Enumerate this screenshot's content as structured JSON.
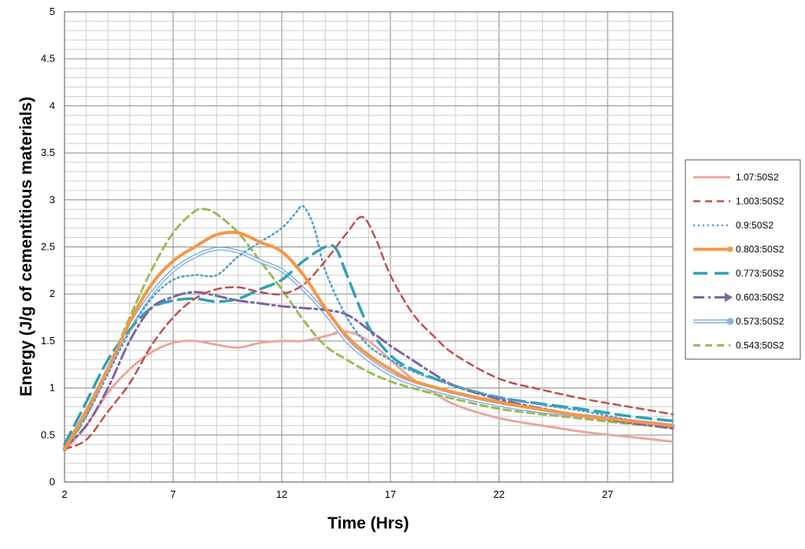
{
  "chart_data": {
    "type": "line",
    "title": "",
    "xlabel": "Time (Hrs)",
    "ylabel": "Energy (J/g of cementitious materials)",
    "xlim": [
      2,
      30
    ],
    "ylim": [
      0,
      5
    ],
    "x_ticks": [
      2,
      7,
      12,
      17,
      22,
      27
    ],
    "y_ticks": [
      0,
      0.5,
      1,
      1.5,
      2,
      2.5,
      3,
      3.5,
      4,
      4.5,
      5
    ],
    "y_tick_labels": [
      "0",
      "0.5",
      "1",
      "1.5",
      "2",
      "2.5",
      "3",
      "3.5",
      "4",
      "4.5",
      "5"
    ],
    "grid": true,
    "legend_position": "right",
    "series": [
      {
        "name": "1.07:50S2",
        "color": "#e8a7a2",
        "style": "solid",
        "width": 3,
        "points": [
          [
            2,
            0.33
          ],
          [
            3,
            0.6
          ],
          [
            4,
            0.95
          ],
          [
            5,
            1.2
          ],
          [
            6,
            1.38
          ],
          [
            7,
            1.48
          ],
          [
            8,
            1.5
          ],
          [
            9,
            1.46
          ],
          [
            10,
            1.43
          ],
          [
            11,
            1.48
          ],
          [
            12,
            1.5
          ],
          [
            13,
            1.5
          ],
          [
            14,
            1.55
          ],
          [
            15,
            1.6
          ],
          [
            16,
            1.5
          ],
          [
            17,
            1.3
          ],
          [
            18,
            1.1
          ],
          [
            19,
            0.95
          ],
          [
            20,
            0.82
          ],
          [
            22,
            0.68
          ],
          [
            24,
            0.6
          ],
          [
            26,
            0.53
          ],
          [
            28,
            0.48
          ],
          [
            30,
            0.43
          ]
        ]
      },
      {
        "name": "1.003:50S2",
        "color": "#c0504d",
        "style": "dashed",
        "width": 2.5,
        "points": [
          [
            2,
            0.35
          ],
          [
            3,
            0.45
          ],
          [
            4,
            0.75
          ],
          [
            5,
            1.05
          ],
          [
            6,
            1.45
          ],
          [
            7,
            1.75
          ],
          [
            8,
            1.95
          ],
          [
            9,
            2.05
          ],
          [
            10,
            2.07
          ],
          [
            11,
            2.02
          ],
          [
            12,
            2.0
          ],
          [
            13,
            2.1
          ],
          [
            14,
            2.35
          ],
          [
            15,
            2.65
          ],
          [
            15.7,
            2.82
          ],
          [
            16.3,
            2.6
          ],
          [
            17,
            2.2
          ],
          [
            18,
            1.8
          ],
          [
            19,
            1.55
          ],
          [
            20,
            1.35
          ],
          [
            22,
            1.1
          ],
          [
            24,
            0.98
          ],
          [
            26,
            0.88
          ],
          [
            28,
            0.8
          ],
          [
            30,
            0.72
          ]
        ]
      },
      {
        "name": "0.9:50S2",
        "color": "#4f9fca",
        "style": "dotted",
        "width": 2.5,
        "points": [
          [
            2,
            0.35
          ],
          [
            3,
            0.7
          ],
          [
            4,
            1.15
          ],
          [
            5,
            1.6
          ],
          [
            6,
            1.95
          ],
          [
            7,
            2.15
          ],
          [
            8,
            2.2
          ],
          [
            9,
            2.2
          ],
          [
            10,
            2.4
          ],
          [
            11,
            2.55
          ],
          [
            12,
            2.7
          ],
          [
            12.6,
            2.85
          ],
          [
            13,
            2.93
          ],
          [
            13.5,
            2.7
          ],
          [
            14,
            2.25
          ],
          [
            15,
            1.75
          ],
          [
            16,
            1.45
          ],
          [
            17,
            1.3
          ],
          [
            18,
            1.18
          ],
          [
            20,
            1.02
          ],
          [
            22,
            0.9
          ],
          [
            24,
            0.82
          ],
          [
            26,
            0.75
          ],
          [
            28,
            0.66
          ],
          [
            30,
            0.6
          ]
        ]
      },
      {
        "name": "0.803:50S2",
        "color": "#f79646",
        "style": "solid",
        "width": 4,
        "points": [
          [
            2,
            0.35
          ],
          [
            3,
            0.75
          ],
          [
            4,
            1.2
          ],
          [
            5,
            1.7
          ],
          [
            6,
            2.1
          ],
          [
            7,
            2.35
          ],
          [
            8,
            2.5
          ],
          [
            9,
            2.63
          ],
          [
            10,
            2.65
          ],
          [
            11,
            2.55
          ],
          [
            12,
            2.45
          ],
          [
            13,
            2.2
          ],
          [
            14,
            1.85
          ],
          [
            15,
            1.55
          ],
          [
            16,
            1.35
          ],
          [
            17,
            1.2
          ],
          [
            18,
            1.08
          ],
          [
            20,
            0.95
          ],
          [
            22,
            0.85
          ],
          [
            24,
            0.77
          ],
          [
            26,
            0.7
          ],
          [
            28,
            0.65
          ],
          [
            30,
            0.6
          ]
        ]
      },
      {
        "name": "0.773:50S2",
        "color": "#31a0b5",
        "style": "longdash",
        "width": 3.5,
        "points": [
          [
            2,
            0.4
          ],
          [
            3,
            0.85
          ],
          [
            4,
            1.3
          ],
          [
            5,
            1.62
          ],
          [
            6,
            1.85
          ],
          [
            7,
            1.93
          ],
          [
            8,
            1.95
          ],
          [
            9,
            1.92
          ],
          [
            10,
            1.95
          ],
          [
            11,
            2.05
          ],
          [
            12,
            2.15
          ],
          [
            13,
            2.35
          ],
          [
            14,
            2.5
          ],
          [
            14.5,
            2.48
          ],
          [
            15,
            2.2
          ],
          [
            16,
            1.65
          ],
          [
            17,
            1.35
          ],
          [
            18,
            1.2
          ],
          [
            20,
            1.02
          ],
          [
            22,
            0.9
          ],
          [
            24,
            0.83
          ],
          [
            26,
            0.77
          ],
          [
            28,
            0.7
          ],
          [
            30,
            0.65
          ]
        ]
      },
      {
        "name": "0.603:50S2",
        "color": "#8064a2",
        "style": "dashdot",
        "width": 3,
        "points": [
          [
            2,
            0.37
          ],
          [
            3,
            0.6
          ],
          [
            4,
            1.0
          ],
          [
            5,
            1.5
          ],
          [
            6,
            1.85
          ],
          [
            7,
            1.97
          ],
          [
            8,
            2.02
          ],
          [
            9,
            1.98
          ],
          [
            10,
            1.93
          ],
          [
            11,
            1.9
          ],
          [
            12,
            1.87
          ],
          [
            13,
            1.85
          ],
          [
            14,
            1.83
          ],
          [
            15,
            1.78
          ],
          [
            16,
            1.62
          ],
          [
            17,
            1.45
          ],
          [
            18,
            1.3
          ],
          [
            19,
            1.15
          ],
          [
            20,
            1.02
          ],
          [
            22,
            0.88
          ],
          [
            24,
            0.78
          ],
          [
            26,
            0.7
          ],
          [
            28,
            0.63
          ],
          [
            30,
            0.57
          ]
        ]
      },
      {
        "name": "0.573:50S2",
        "color": "#8db3e2",
        "style": "double",
        "width": 2,
        "points": [
          [
            2,
            0.35
          ],
          [
            3,
            0.75
          ],
          [
            4,
            1.2
          ],
          [
            5,
            1.65
          ],
          [
            6,
            2.0
          ],
          [
            7,
            2.25
          ],
          [
            8,
            2.4
          ],
          [
            9,
            2.48
          ],
          [
            10,
            2.45
          ],
          [
            11,
            2.35
          ],
          [
            12,
            2.25
          ],
          [
            13,
            2.05
          ],
          [
            14,
            1.8
          ],
          [
            15,
            1.5
          ],
          [
            16,
            1.3
          ],
          [
            17,
            1.15
          ],
          [
            18,
            1.05
          ],
          [
            20,
            0.92
          ],
          [
            22,
            0.82
          ],
          [
            24,
            0.75
          ],
          [
            26,
            0.7
          ],
          [
            28,
            0.65
          ],
          [
            30,
            0.6
          ]
        ]
      },
      {
        "name": "0.543:50S2",
        "color": "#9bbb59",
        "style": "dashed",
        "width": 3,
        "points": [
          [
            2,
            0.33
          ],
          [
            3,
            0.7
          ],
          [
            4,
            1.2
          ],
          [
            5,
            1.75
          ],
          [
            6,
            2.25
          ],
          [
            7,
            2.65
          ],
          [
            8,
            2.88
          ],
          [
            8.5,
            2.9
          ],
          [
            9,
            2.85
          ],
          [
            10,
            2.65
          ],
          [
            11,
            2.35
          ],
          [
            12,
            2.05
          ],
          [
            13,
            1.72
          ],
          [
            14,
            1.45
          ],
          [
            15,
            1.3
          ],
          [
            16,
            1.17
          ],
          [
            17,
            1.07
          ],
          [
            18,
            1.0
          ],
          [
            20,
            0.88
          ],
          [
            22,
            0.78
          ],
          [
            24,
            0.72
          ],
          [
            26,
            0.67
          ],
          [
            28,
            0.62
          ],
          [
            30,
            0.58
          ]
        ]
      }
    ]
  }
}
